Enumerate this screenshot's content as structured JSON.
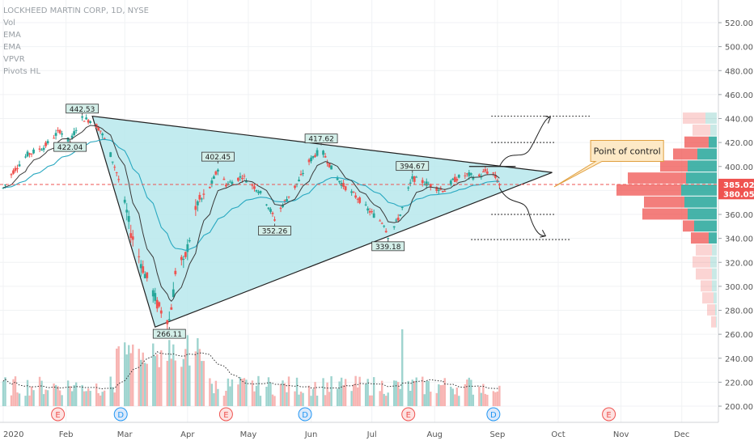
{
  "chart_data": {
    "type": "candlestick",
    "title": "LOCKHEED MARTIN CORP, 1D, NYSE",
    "indicators": [
      "Vol",
      "EMA",
      "EMA",
      "VPVR",
      "Pivots HL"
    ],
    "y_axis": {
      "side": "right",
      "range": [
        190,
        530
      ],
      "ticks": [
        200,
        220,
        240,
        260,
        280,
        300,
        320,
        340,
        360,
        380,
        400,
        420,
        440,
        460,
        480,
        500,
        520
      ],
      "tick_labels": [
        "200.00",
        "220.00",
        "240.00",
        "260.00",
        "280.00",
        "300.00",
        "320.00",
        "340.00",
        "360.00",
        "380.00",
        "400.00",
        "420.00",
        "440.00",
        "460.00",
        "480.00",
        "500.00",
        "520.00"
      ]
    },
    "x_axis": {
      "range_day": [
        0,
        330
      ],
      "months": [
        {
          "label": "2020",
          "day": 0
        },
        {
          "label": "Feb",
          "day": 31
        },
        {
          "label": "Mar",
          "day": 60
        },
        {
          "label": "Apr",
          "day": 91
        },
        {
          "label": "May",
          "day": 121
        },
        {
          "label": "Jun",
          "day": 152
        },
        {
          "label": "Jul",
          "day": 182
        },
        {
          "label": "Aug",
          "day": 213
        },
        {
          "label": "Sep",
          "day": 244
        },
        {
          "label": "Oct",
          "day": 274
        },
        {
          "label": "Nov",
          "day": 305
        },
        {
          "label": "Dec",
          "day": 335
        }
      ]
    },
    "price_labels": {
      "current": "385.02",
      "close": "380.05",
      "current_value": 385.02,
      "close_value": 380.05
    },
    "pivots": [
      {
        "label": "442.53",
        "day": 39,
        "value": 442.53,
        "pos": "above"
      },
      {
        "label": "422.04",
        "day": 33,
        "value": 422.04,
        "pos": "below"
      },
      {
        "label": "266.11",
        "day": 82,
        "value": 266.11,
        "pos": "below"
      },
      {
        "label": "402.45",
        "day": 106,
        "value": 402.45,
        "pos": "above"
      },
      {
        "label": "352.26",
        "day": 134,
        "value": 352.26,
        "pos": "below"
      },
      {
        "label": "417.62",
        "day": 157,
        "value": 417.62,
        "pos": "above"
      },
      {
        "label": "339.18",
        "day": 190,
        "value": 339.18,
        "pos": "below"
      },
      {
        "label": "394.67",
        "day": 202,
        "value": 394.67,
        "pos": "above"
      }
    ],
    "triangle": [
      {
        "day": 44,
        "value": 442
      },
      {
        "day": 271,
        "value": 395
      },
      {
        "day": 75,
        "value": 266
      }
    ],
    "resistance_line": {
      "day_start": 230,
      "day_end": 253,
      "value": 400
    },
    "dotted_levels": [
      {
        "value": 442,
        "day_start": 241,
        "day_end": 290
      },
      {
        "value": 420,
        "day_start": 241,
        "day_end": 272
      },
      {
        "value": 360,
        "day_start": 241,
        "day_end": 272
      },
      {
        "value": 339,
        "day_start": 231,
        "day_end": 280
      }
    ],
    "annotation": {
      "text": "Point of control",
      "value": 413,
      "day_start": 290,
      "day_end": 326
    },
    "earnings_markers": [
      {
        "letter": "E",
        "day": 27
      },
      {
        "letter": "D",
        "day": 58
      },
      {
        "letter": "E",
        "day": 110
      },
      {
        "letter": "D",
        "day": 149
      },
      {
        "letter": "E",
        "day": 200
      },
      {
        "letter": "D",
        "day": 242
      },
      {
        "letter": "E",
        "day": 299
      }
    ],
    "volume_profile_rows": [
      {
        "value": 440,
        "up": 14,
        "down": 28
      },
      {
        "value": 430,
        "up": 8,
        "down": 22
      },
      {
        "value": 420,
        "up": 10,
        "down": 30
      },
      {
        "value": 410,
        "up": 24,
        "down": 30
      },
      {
        "value": 400,
        "up": 36,
        "down": 34
      },
      {
        "value": 390,
        "up": 38,
        "down": 72
      },
      {
        "value": 380,
        "up": 44,
        "down": 80
      },
      {
        "value": 370,
        "up": 40,
        "down": 50
      },
      {
        "value": 360,
        "up": 36,
        "down": 56
      },
      {
        "value": 350,
        "up": 28,
        "down": 14
      },
      {
        "value": 340,
        "up": 10,
        "down": 22
      },
      {
        "value": 330,
        "up": 6,
        "down": 20
      },
      {
        "value": 320,
        "up": 8,
        "down": 22
      },
      {
        "value": 310,
        "up": 6,
        "down": 20
      },
      {
        "value": 300,
        "up": 6,
        "down": 14
      },
      {
        "value": 290,
        "up": 4,
        "down": 14
      },
      {
        "value": 280,
        "up": 2,
        "down": 10
      },
      {
        "value": 270,
        "up": 1,
        "down": 6
      }
    ],
    "colors": {
      "up": "#26a69a",
      "down": "#ef5350",
      "vol_up": "#9ed4cf",
      "vol_down": "#f7b4b2",
      "triangle_fill": "#b7e8ec",
      "ema_fast": "#3a3a3a",
      "ema_slow": "#28a8c0",
      "vp_up": "#26a69a",
      "vp_down": "#ef5350"
    }
  }
}
